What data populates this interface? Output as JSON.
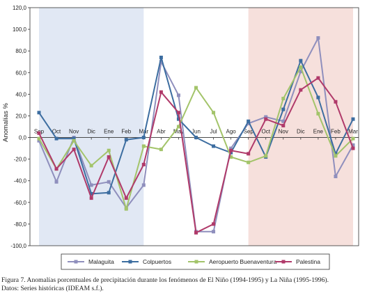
{
  "chart_data": {
    "type": "line",
    "title": "",
    "xlabel": "",
    "ylabel": "Anomalías %",
    "ylim": [
      -100,
      120
    ],
    "yticks": [
      "120,0",
      "100,0",
      "80,0",
      "60,0",
      "40,0",
      "20,0",
      "0,0",
      "-20,0",
      "-40,0",
      "-60,0",
      "-80,0",
      "-100,0"
    ],
    "categories": [
      "Sep",
      "Oct",
      "Nov",
      "Dic",
      "Ene",
      "Feb",
      "Mar",
      "Abr",
      "May",
      "Jun",
      "Jul",
      "Ago",
      "Sep",
      "Oct",
      "Nov",
      "Dic",
      "Ene",
      "Feb",
      "Mar"
    ],
    "shaded_periods": [
      {
        "from": "Sep",
        "to": "Mar",
        "color": "#e1e8f4"
      },
      {
        "from": "Sep",
        "to": "Mar",
        "color": "#f6e0dc"
      }
    ],
    "legend_position": "bottom",
    "series": [
      {
        "name": "Malaguita",
        "color": "#8f8fbd",
        "marker": "square",
        "values": [
          -3,
          -41,
          0,
          -44,
          -41,
          -65,
          -44,
          70,
          39,
          -87,
          -87,
          -10,
          13,
          19,
          15,
          61,
          92,
          -36,
          -7
        ]
      },
      {
        "name": "Colpuertos",
        "color": "#3c6da0",
        "marker": "square",
        "values": [
          23,
          -1,
          -1,
          -52,
          -51,
          -2,
          0,
          74,
          17,
          0,
          -8,
          -14,
          15,
          -18,
          26,
          71,
          37,
          -15,
          17
        ]
      },
      {
        "name": "Aeropuerto Buenaventura",
        "color": "#a3c46a",
        "marker": "square",
        "values": [
          -1,
          -29,
          -3,
          -26,
          -12,
          -66,
          -8,
          -11,
          10,
          46,
          23,
          -18,
          -23,
          -17,
          36,
          65,
          22,
          -17,
          -1
        ]
      },
      {
        "name": "Palestina",
        "color": "#b03a6a",
        "marker": "square",
        "values": [
          4,
          -29,
          -11,
          -56,
          -18,
          -56,
          -25,
          42,
          23,
          -88,
          -80,
          -12,
          -15,
          17,
          11,
          44,
          55,
          33,
          -10
        ]
      }
    ]
  },
  "caption": {
    "line1": "Figura 7. Anomalías porcentuales de precipitación durante los fenómenos de El Niño (1994-1995) y La Niña (1995-1996).",
    "line2": "Datos: Series históricas (IDEAM s.f.)."
  }
}
